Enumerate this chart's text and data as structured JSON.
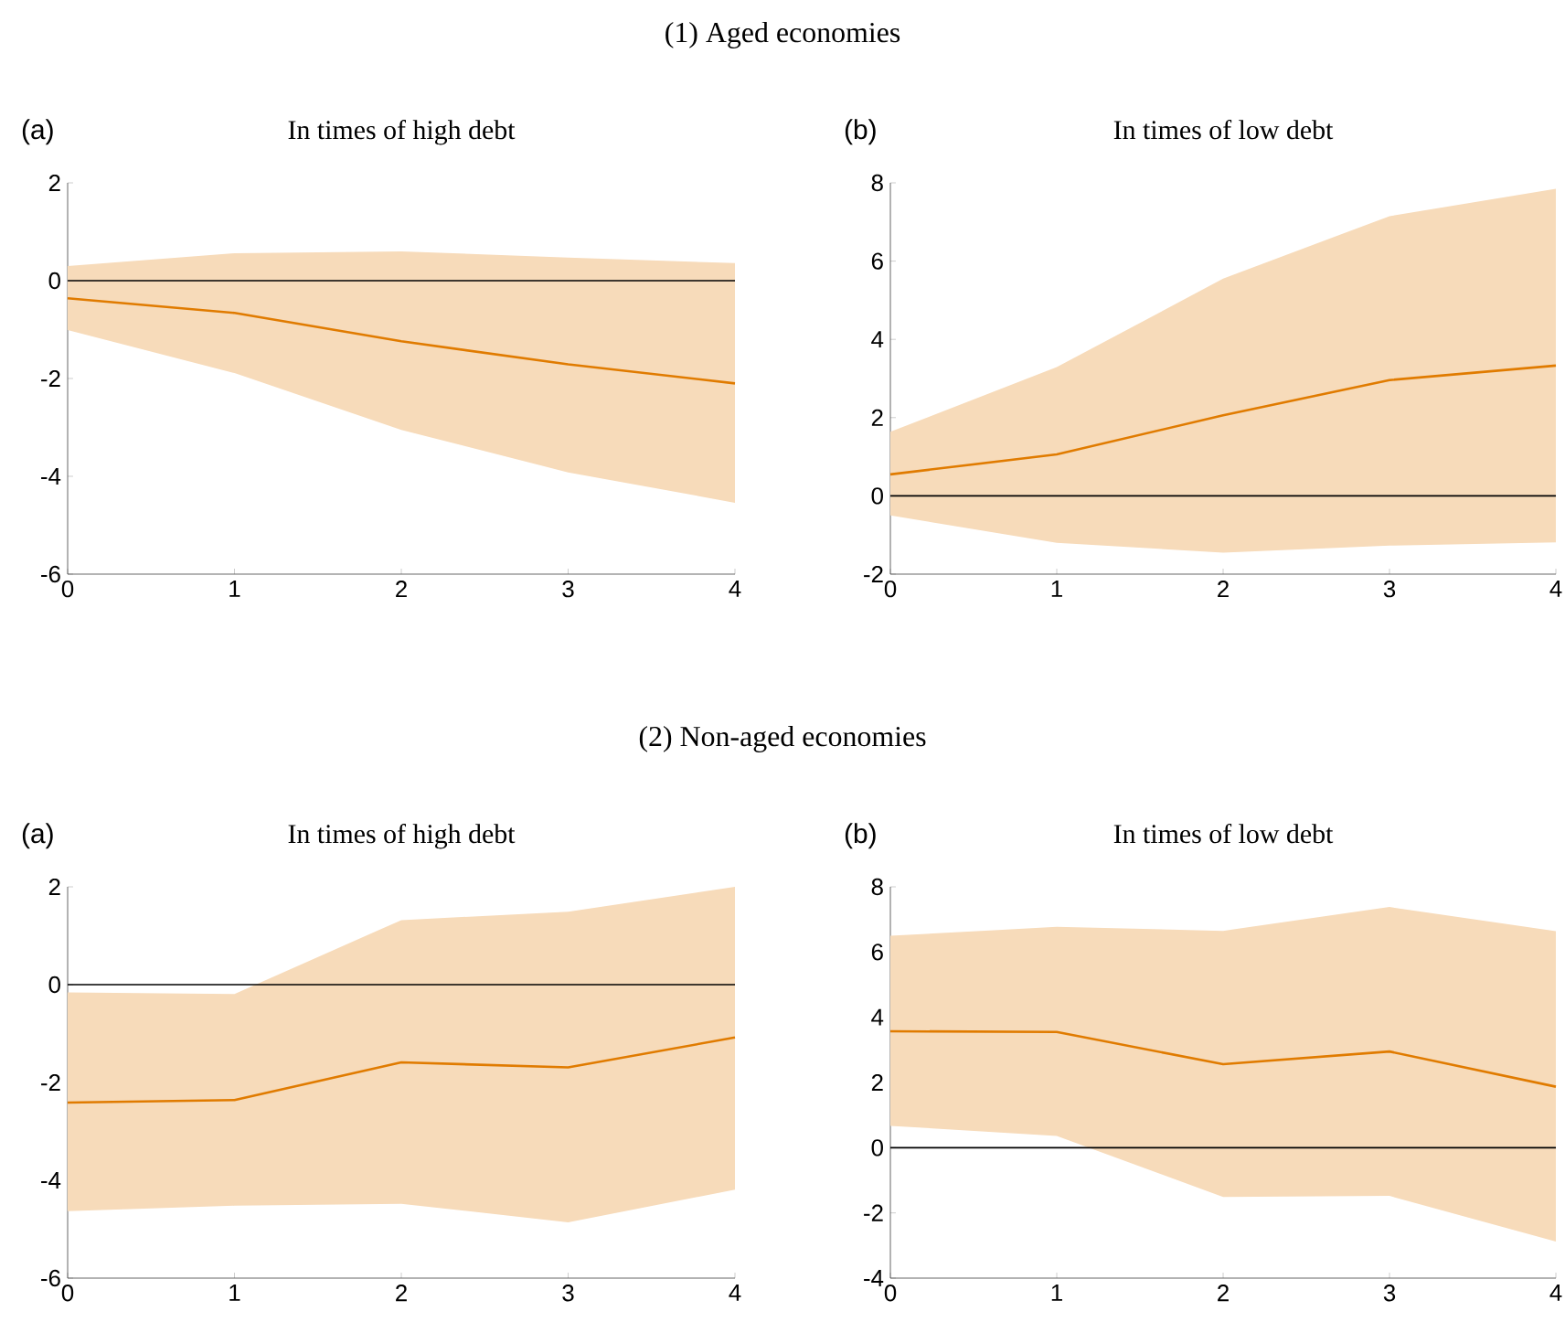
{
  "chart_data": [
    {
      "type": "line",
      "title": "In times of high debt",
      "annotations": [
        "(a)",
        "(1) Aged economies"
      ],
      "x": [
        0,
        1,
        2,
        3,
        4
      ],
      "xlim": [
        0,
        4
      ],
      "xticks": [
        0,
        1,
        2,
        3,
        4
      ],
      "ylim": [
        -6,
        2
      ],
      "yticks": [
        -6,
        -4,
        -2,
        0,
        2
      ],
      "ref_lines": [
        {
          "axis": "y",
          "value": 0,
          "color": "#000000"
        }
      ],
      "series": [
        {
          "color": "#e07b00",
          "values": [
            -0.36,
            -0.66,
            -1.24,
            -1.71,
            -2.1
          ],
          "lower": [
            -1.01,
            -1.89,
            -3.05,
            -3.92,
            -4.54
          ],
          "upper": [
            0.3,
            0.56,
            0.6,
            0.47,
            0.36
          ]
        }
      ]
    },
    {
      "type": "line",
      "title": "In times of low debt",
      "annotations": [
        "(b)"
      ],
      "x": [
        0,
        1,
        2,
        3,
        4
      ],
      "xlim": [
        0,
        4
      ],
      "xticks": [
        0,
        1,
        2,
        3,
        4
      ],
      "ylim": [
        -2,
        8
      ],
      "yticks": [
        -2,
        0,
        2,
        4,
        6,
        8
      ],
      "ref_lines": [
        {
          "axis": "y",
          "value": 0,
          "color": "#000000"
        }
      ],
      "series": [
        {
          "color": "#e07b00",
          "values": [
            0.55,
            1.06,
            2.06,
            2.96,
            3.33
          ],
          "lower": [
            -0.5,
            -1.2,
            -1.45,
            -1.27,
            -1.19
          ],
          "upper": [
            1.64,
            3.29,
            5.55,
            7.15,
            7.85
          ]
        }
      ]
    },
    {
      "type": "line",
      "title": "In times of high debt",
      "annotations": [
        "(a)",
        "(2) Non-aged economies"
      ],
      "x": [
        0,
        1,
        2,
        3,
        4
      ],
      "xlim": [
        0,
        4
      ],
      "xticks": [
        0,
        1,
        2,
        3,
        4
      ],
      "ylim": [
        -6,
        2
      ],
      "yticks": [
        -6,
        -4,
        -2,
        0,
        2
      ],
      "ref_lines": [
        {
          "axis": "y",
          "value": 0,
          "color": "#000000"
        }
      ],
      "series": [
        {
          "color": "#e07b00",
          "values": [
            -2.41,
            -2.36,
            -1.59,
            -1.69,
            -1.08
          ],
          "lower": [
            -4.63,
            -4.52,
            -4.48,
            -4.86,
            -4.19
          ],
          "upper": [
            -0.16,
            -0.19,
            1.32,
            1.49,
            2.0
          ]
        }
      ]
    },
    {
      "type": "line",
      "title": "In times of low debt",
      "annotations": [
        "(b)"
      ],
      "x": [
        0,
        1,
        2,
        3,
        4
      ],
      "xlim": [
        0,
        4
      ],
      "xticks": [
        0,
        1,
        2,
        3,
        4
      ],
      "ylim": [
        -4,
        8
      ],
      "yticks": [
        -4,
        -2,
        0,
        2,
        4,
        6,
        8
      ],
      "ref_lines": [
        {
          "axis": "y",
          "value": 0,
          "color": "#000000"
        }
      ],
      "series": [
        {
          "color": "#e07b00",
          "values": [
            3.57,
            3.55,
            2.56,
            2.95,
            1.87
          ],
          "lower": [
            0.67,
            0.36,
            -1.51,
            -1.48,
            -2.88
          ],
          "upper": [
            6.5,
            6.77,
            6.65,
            7.38,
            6.64
          ]
        }
      ]
    }
  ]
}
